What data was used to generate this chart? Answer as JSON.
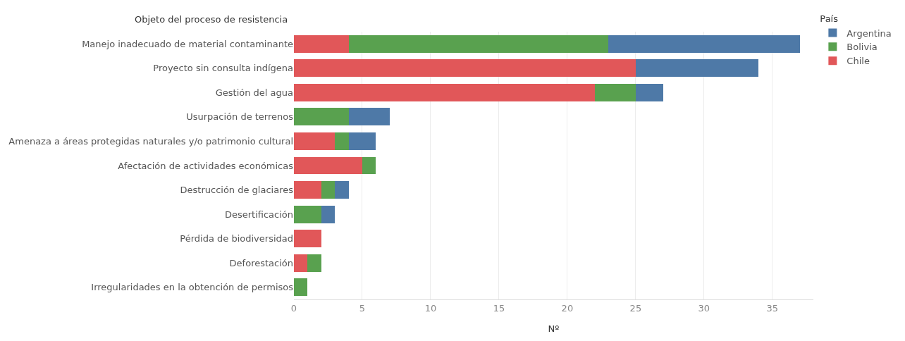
{
  "chart_data": {
    "type": "bar",
    "orientation": "horizontal",
    "stacked": true,
    "ylabel": "Objeto del proceso de resistencia",
    "xlabel": "Nº",
    "legend_title": "País",
    "legend": "top right",
    "grid": "x",
    "categories": [
      "Manejo inadecuado de material contaminante",
      "Proyecto sin consulta indígena",
      "Gestión del agua",
      "Usurpación de terrenos",
      "Amenaza a áreas protegidas naturales y/o patrimonio cultural",
      "Afectación de actividades económicas",
      "Destrucción de glaciares",
      "Desertificación",
      "Pérdida de biodiversidad",
      "Deforestación",
      "Irregularidades en la obtención de permisos"
    ],
    "xlim": [
      0,
      38
    ],
    "xticks": [
      0,
      5,
      10,
      15,
      20,
      25,
      30,
      35
    ],
    "series": [
      {
        "name": "Chile",
        "color": "#e15759",
        "values": [
          4,
          25,
          22,
          null,
          3,
          5,
          2,
          null,
          2,
          1,
          null
        ]
      },
      {
        "name": "Bolivia",
        "color": "#59a14f",
        "values": [
          19,
          null,
          3,
          4,
          1,
          1,
          1,
          2,
          null,
          1,
          1
        ]
      },
      {
        "name": "Argentina",
        "color": "#4e79a7",
        "values": [
          14,
          9,
          2,
          3,
          2,
          null,
          1,
          1,
          null,
          null,
          null
        ]
      }
    ]
  }
}
